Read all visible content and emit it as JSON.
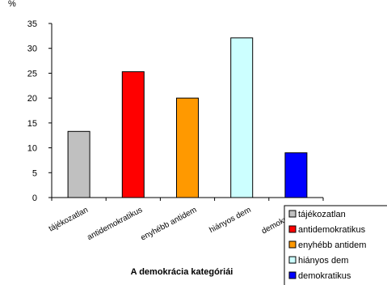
{
  "chart_data": {
    "type": "bar",
    "title": "",
    "xlabel": "A demokrácia kategóriái",
    "ylabel": "%",
    "categories": [
      "tájékozatlan",
      "antidemokratikus",
      "enyhébb antidem",
      "hiányos dem",
      "demokratikus"
    ],
    "values": [
      13.3,
      25.3,
      20,
      32.1,
      9
    ],
    "colors": [
      "#c0c0c0",
      "#ff0000",
      "#ff9900",
      "#ccffff",
      "#0000ff"
    ],
    "ylim": [
      0,
      35
    ],
    "yticks": [
      0,
      5,
      10,
      15,
      20,
      25,
      30,
      35
    ],
    "grid": false,
    "legend": {
      "placement": "bottom-right",
      "entries": [
        "tájékozatlan",
        "antidemokratikus",
        "enyhébb antidem",
        "hiányos dem",
        "demokratikus"
      ]
    }
  }
}
